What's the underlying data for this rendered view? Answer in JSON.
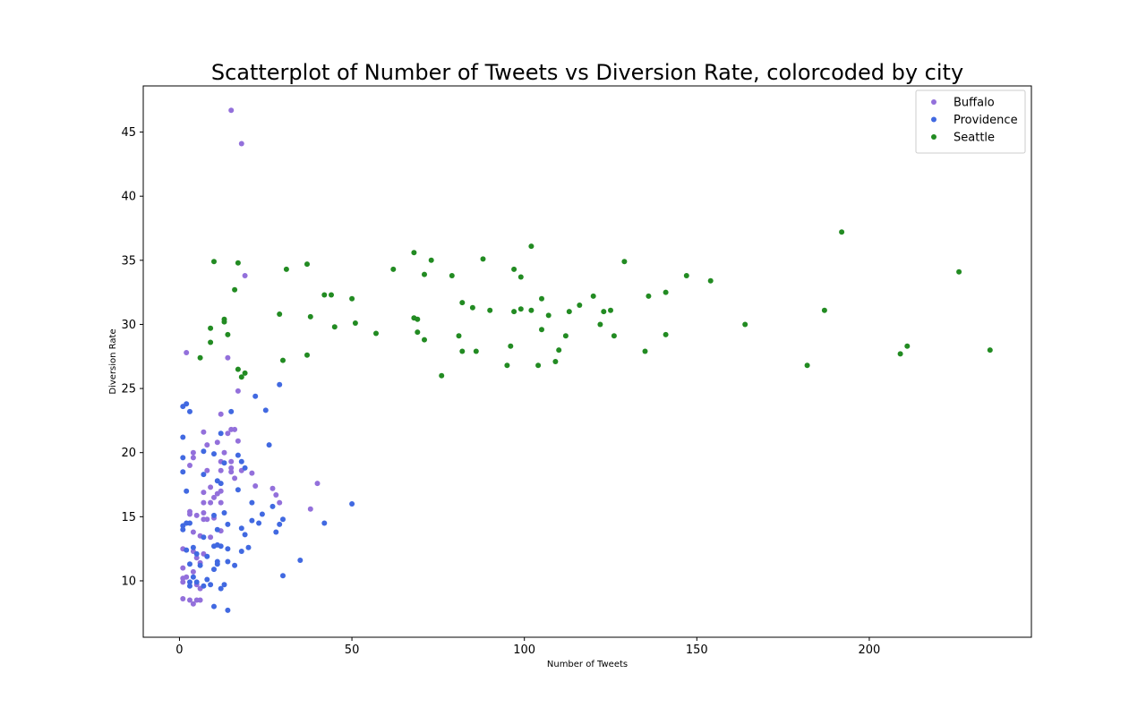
{
  "chart_data": {
    "type": "scatter",
    "title": "Scatterplot of Number of Tweets vs Diversion Rate, colorcoded by city",
    "xlabel": "Number of Tweets",
    "ylabel": "Diversion Rate",
    "xlim": [
      -10.5,
      247
    ],
    "ylim": [
      5.6,
      48.6
    ],
    "xticks": [
      0,
      50,
      100,
      150,
      200
    ],
    "yticks": [
      10,
      15,
      20,
      25,
      30,
      35,
      40,
      45
    ],
    "grid": false,
    "legend_position": "top-right",
    "series": [
      {
        "name": "Buffalo",
        "color": "#9370DB",
        "points": [
          [
            15,
            46.7
          ],
          [
            18,
            44.1
          ],
          [
            19,
            33.8
          ],
          [
            2,
            27.8
          ],
          [
            14,
            27.4
          ],
          [
            17,
            24.8
          ],
          [
            12,
            23.0
          ],
          [
            15,
            21.8
          ],
          [
            16,
            21.8
          ],
          [
            14,
            21.5
          ],
          [
            7,
            21.6
          ],
          [
            17,
            20.9
          ],
          [
            11,
            20.8
          ],
          [
            8,
            20.6
          ],
          [
            13,
            20.0
          ],
          [
            4,
            20.0
          ],
          [
            4,
            19.6
          ],
          [
            12,
            19.3
          ],
          [
            15,
            19.3
          ],
          [
            3,
            19.0
          ],
          [
            15,
            18.8
          ],
          [
            15,
            18.5
          ],
          [
            12,
            18.6
          ],
          [
            8,
            18.6
          ],
          [
            21,
            18.4
          ],
          [
            18,
            18.6
          ],
          [
            16,
            18.0
          ],
          [
            9,
            17.3
          ],
          [
            12,
            17.0
          ],
          [
            11,
            16.8
          ],
          [
            7,
            16.9
          ],
          [
            10,
            16.5
          ],
          [
            22,
            17.4
          ],
          [
            40,
            17.6
          ],
          [
            28,
            16.7
          ],
          [
            27,
            17.2
          ],
          [
            7,
            16.1
          ],
          [
            9,
            16.1
          ],
          [
            12,
            16.1
          ],
          [
            29,
            16.1
          ],
          [
            3,
            15.4
          ],
          [
            3,
            15.2
          ],
          [
            5,
            15.1
          ],
          [
            7,
            15.3
          ],
          [
            8,
            14.8
          ],
          [
            7,
            14.8
          ],
          [
            10,
            14.9
          ],
          [
            38,
            15.6
          ],
          [
            4,
            13.8
          ],
          [
            6,
            13.5
          ],
          [
            12,
            13.9
          ],
          [
            9,
            13.4
          ],
          [
            1,
            12.5
          ],
          [
            4,
            12.3
          ],
          [
            5,
            11.8
          ],
          [
            7,
            12.1
          ],
          [
            6,
            11.4
          ],
          [
            1,
            11.0
          ],
          [
            4,
            10.7
          ],
          [
            2,
            10.3
          ],
          [
            1,
            10.2
          ],
          [
            1,
            9.9
          ],
          [
            5,
            9.7
          ],
          [
            6,
            9.4
          ],
          [
            1,
            8.6
          ],
          [
            3,
            8.5
          ],
          [
            4,
            8.2
          ],
          [
            5,
            8.5
          ],
          [
            6,
            8.5
          ]
        ]
      },
      {
        "name": "Providence",
        "color": "#4169E1",
        "points": [
          [
            29,
            25.3
          ],
          [
            22,
            24.4
          ],
          [
            2,
            23.8
          ],
          [
            1,
            23.6
          ],
          [
            3,
            23.2
          ],
          [
            15,
            23.2
          ],
          [
            25,
            23.3
          ],
          [
            12,
            21.5
          ],
          [
            1,
            21.2
          ],
          [
            26,
            20.6
          ],
          [
            7,
            20.1
          ],
          [
            10,
            19.9
          ],
          [
            1,
            19.6
          ],
          [
            17,
            19.8
          ],
          [
            18,
            19.3
          ],
          [
            13,
            19.2
          ],
          [
            1,
            18.5
          ],
          [
            19,
            18.8
          ],
          [
            7,
            18.3
          ],
          [
            11,
            17.8
          ],
          [
            12,
            17.6
          ],
          [
            2,
            17.0
          ],
          [
            17,
            17.1
          ],
          [
            13,
            15.3
          ],
          [
            21,
            16.1
          ],
          [
            27,
            15.8
          ],
          [
            50,
            16.0
          ],
          [
            10,
            15.1
          ],
          [
            24,
            15.2
          ],
          [
            2,
            14.5
          ],
          [
            1,
            14.3
          ],
          [
            3,
            14.5
          ],
          [
            1,
            14.0
          ],
          [
            14,
            14.4
          ],
          [
            11,
            14.0
          ],
          [
            21,
            14.7
          ],
          [
            23,
            14.5
          ],
          [
            30,
            14.8
          ],
          [
            29,
            14.4
          ],
          [
            42,
            14.5
          ],
          [
            18,
            14.1
          ],
          [
            19,
            13.6
          ],
          [
            28,
            13.8
          ],
          [
            7,
            13.4
          ],
          [
            2,
            12.4
          ],
          [
            4,
            12.6
          ],
          [
            10,
            12.7
          ],
          [
            11,
            12.8
          ],
          [
            12,
            12.7
          ],
          [
            14,
            12.5
          ],
          [
            18,
            12.3
          ],
          [
            20,
            12.6
          ],
          [
            5,
            12.1
          ],
          [
            8,
            11.9
          ],
          [
            11,
            11.5
          ],
          [
            11,
            11.3
          ],
          [
            14,
            11.5
          ],
          [
            16,
            11.2
          ],
          [
            3,
            11.3
          ],
          [
            6,
            11.2
          ],
          [
            35,
            11.6
          ],
          [
            10,
            10.9
          ],
          [
            4,
            10.3
          ],
          [
            8,
            10.1
          ],
          [
            3,
            9.9
          ],
          [
            5,
            9.9
          ],
          [
            7,
            9.6
          ],
          [
            9,
            9.7
          ],
          [
            12,
            9.4
          ],
          [
            13,
            9.7
          ],
          [
            30,
            10.4
          ],
          [
            10,
            8.0
          ],
          [
            14,
            7.7
          ],
          [
            3,
            9.6
          ]
        ]
      },
      {
        "name": "Seattle",
        "color": "#228B22",
        "points": [
          [
            192,
            37.2
          ],
          [
            102,
            36.1
          ],
          [
            68,
            35.6
          ],
          [
            88,
            35.1
          ],
          [
            73,
            35.0
          ],
          [
            10,
            34.9
          ],
          [
            17,
            34.8
          ],
          [
            37,
            34.7
          ],
          [
            129,
            34.9
          ],
          [
            62,
            34.3
          ],
          [
            31,
            34.3
          ],
          [
            226,
            34.1
          ],
          [
            79,
            33.8
          ],
          [
            97,
            34.3
          ],
          [
            99,
            33.7
          ],
          [
            147,
            33.8
          ],
          [
            154,
            33.4
          ],
          [
            71,
            33.9
          ],
          [
            16,
            32.7
          ],
          [
            42,
            32.3
          ],
          [
            44,
            32.3
          ],
          [
            136,
            32.2
          ],
          [
            141,
            32.5
          ],
          [
            105,
            32.0
          ],
          [
            120,
            32.2
          ],
          [
            50,
            32.0
          ],
          [
            82,
            31.7
          ],
          [
            85,
            31.3
          ],
          [
            90,
            31.1
          ],
          [
            97,
            31.0
          ],
          [
            99,
            31.2
          ],
          [
            102,
            31.1
          ],
          [
            107,
            30.7
          ],
          [
            113,
            31.0
          ],
          [
            116,
            31.5
          ],
          [
            123,
            31.0
          ],
          [
            125,
            31.1
          ],
          [
            187,
            31.1
          ],
          [
            29,
            30.8
          ],
          [
            38,
            30.6
          ],
          [
            13,
            30.4
          ],
          [
            13,
            30.2
          ],
          [
            51,
            30.1
          ],
          [
            68,
            30.5
          ],
          [
            69,
            30.4
          ],
          [
            9,
            29.7
          ],
          [
            45,
            29.8
          ],
          [
            122,
            30.0
          ],
          [
            164,
            30.0
          ],
          [
            57,
            29.3
          ],
          [
            69,
            29.4
          ],
          [
            105,
            29.6
          ],
          [
            14,
            29.2
          ],
          [
            126,
            29.1
          ],
          [
            112,
            29.1
          ],
          [
            141,
            29.2
          ],
          [
            81,
            29.1
          ],
          [
            71,
            28.8
          ],
          [
            9,
            28.6
          ],
          [
            96,
            28.3
          ],
          [
            211,
            28.3
          ],
          [
            209,
            27.7
          ],
          [
            235,
            28.0
          ],
          [
            110,
            28.0
          ],
          [
            82,
            27.9
          ],
          [
            86,
            27.9
          ],
          [
            135,
            27.9
          ],
          [
            6,
            27.4
          ],
          [
            37,
            27.6
          ],
          [
            30,
            27.2
          ],
          [
            109,
            27.1
          ],
          [
            95,
            26.8
          ],
          [
            104,
            26.8
          ],
          [
            182,
            26.8
          ],
          [
            17,
            26.5
          ],
          [
            19,
            26.2
          ],
          [
            18,
            25.9
          ],
          [
            76,
            26.0
          ]
        ]
      }
    ]
  }
}
